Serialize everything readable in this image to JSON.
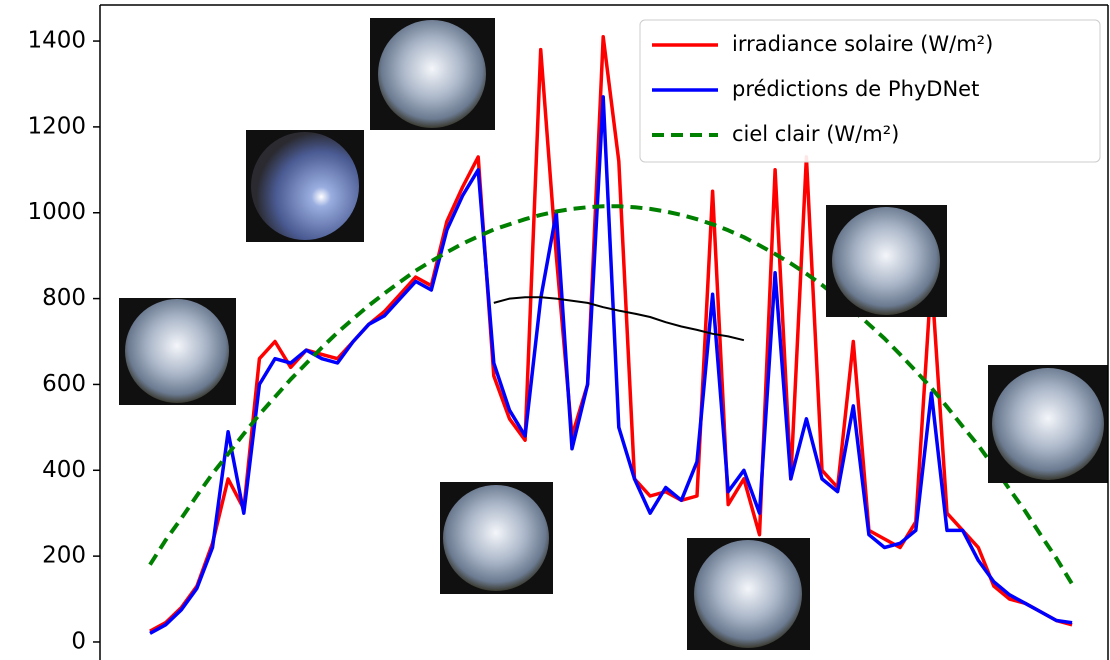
{
  "chart_data": {
    "type": "line",
    "x": [
      0,
      1,
      2,
      3,
      4,
      5,
      6,
      7,
      8,
      9,
      10,
      11,
      12,
      13,
      14,
      15,
      16,
      17,
      18,
      19,
      20,
      21,
      22,
      23,
      24,
      25,
      26,
      27,
      28,
      29,
      30,
      31,
      32,
      33,
      34,
      35,
      36,
      37,
      38,
      39,
      40,
      41,
      42,
      43,
      44,
      45,
      46,
      47,
      48,
      49,
      50,
      51,
      52,
      53,
      54,
      55,
      56,
      57,
      58,
      59
    ],
    "xlim": [
      -3.2,
      61.3
    ],
    "ylim": [
      -42,
      1484
    ],
    "yticks": [
      0,
      200,
      400,
      600,
      800,
      1000,
      1200,
      1400
    ],
    "legend": "upper right",
    "series": [
      {
        "name": "irradiance solaire  (W/m²)",
        "color": "#ff0000",
        "style": "solid",
        "values": [
          25,
          45,
          80,
          130,
          230,
          380,
          310,
          660,
          700,
          640,
          680,
          670,
          660,
          700,
          740,
          770,
          810,
          850,
          830,
          980,
          1060,
          1130,
          620,
          520,
          470,
          1380,
          900,
          480,
          600,
          1410,
          1120,
          380,
          340,
          350,
          330,
          340,
          1050,
          320,
          380,
          250,
          1100,
          380,
          1130,
          400,
          360,
          700,
          260,
          240,
          220,
          280,
          850,
          300,
          260,
          220,
          130,
          100,
          90,
          70,
          50,
          40
        ]
      },
      {
        "name": "prédictions de PhyDNet",
        "color": "#0000ff",
        "style": "solid",
        "values": [
          20,
          40,
          75,
          125,
          220,
          490,
          300,
          600,
          660,
          650,
          680,
          660,
          650,
          700,
          740,
          760,
          800,
          840,
          820,
          960,
          1040,
          1100,
          650,
          540,
          480,
          800,
          1000,
          450,
          600,
          1270,
          500,
          380,
          300,
          360,
          330,
          420,
          810,
          350,
          400,
          300,
          860,
          380,
          520,
          380,
          350,
          550,
          250,
          220,
          230,
          260,
          580,
          260,
          260,
          190,
          140,
          110,
          90,
          70,
          50,
          45
        ]
      },
      {
        "name": "ciel clair (W/m²)",
        "color": "#008000",
        "style": "dashed",
        "values": [
          180,
          237,
          288,
          341,
          392,
          438,
          485,
          530,
          571,
          612,
          649,
          686,
          721,
          753,
          784,
          812,
          839,
          865,
          887,
          908,
          928,
          945,
          961,
          973,
          985,
          995,
          1003,
          1009,
          1013,
          1015,
          1015,
          1013,
          1009,
          1003,
          995,
          985,
          973,
          959,
          943,
          924,
          904,
          882,
          858,
          832,
          803,
          773,
          740,
          707,
          670,
          631,
          592,
          548,
          502,
          458,
          408,
          356,
          305,
          249,
          195,
          135
        ]
      },
      {
        "color": "#000000",
        "style": "thin",
        "values": [
          null,
          null,
          null,
          null,
          null,
          null,
          null,
          null,
          null,
          null,
          null,
          null,
          null,
          null,
          null,
          null,
          null,
          null,
          null,
          null,
          null,
          null,
          790,
          800,
          803,
          803,
          800,
          795,
          790,
          780,
          772,
          765,
          757,
          745,
          735,
          727,
          718,
          712,
          703,
          null,
          null,
          null,
          null,
          null,
          null,
          null,
          null,
          null,
          null,
          null,
          null,
          null,
          null,
          null,
          null,
          null,
          null,
          null,
          null,
          null
        ]
      }
    ]
  }
}
